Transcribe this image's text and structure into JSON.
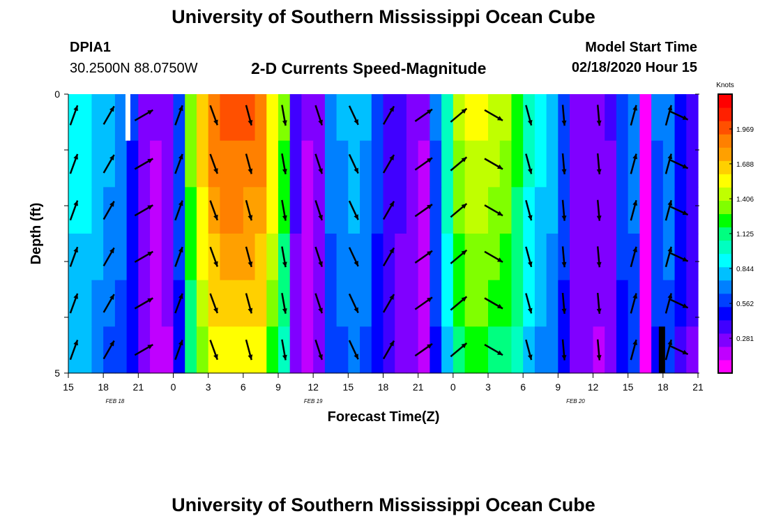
{
  "header": {
    "title": "University of Southern Mississippi Ocean Cube",
    "station": "DPIA1",
    "location": "30.2500N 88.0750W",
    "plot_title": "2-D Currents Speed-Magnitude",
    "model_label": "Model Start Time",
    "model_time": "02/18/2020 Hour 15"
  },
  "footer": {
    "title": "University of Southern Mississippi Ocean Cube"
  },
  "colors": {
    "scale": [
      "#ff00ff",
      "#c000ff",
      "#8000ff",
      "#4000ff",
      "#0000ff",
      "#0040ff",
      "#0080ff",
      "#00c0ff",
      "#00ffff",
      "#00ffc0",
      "#00ff80",
      "#00ff00",
      "#80ff00",
      "#c0ff00",
      "#ffff00",
      "#ffd000",
      "#ffa000",
      "#ff8000",
      "#ff5000",
      "#ff2000",
      "#ff0000"
    ],
    "stripe_white": "#ffffff",
    "stripe_black": "#000000"
  },
  "chart_data": {
    "type": "heatmap",
    "title": "2-D Currents Speed-Magnitude",
    "xlabel": "Forecast Time(Z)",
    "ylabel": "Depth (ft)",
    "ylim": [
      0,
      5
    ],
    "y_ticks": [
      "0",
      "5"
    ],
    "x_ticks": [
      "15",
      "18",
      "21",
      "0",
      "3",
      "6",
      "9",
      "12",
      "15",
      "18",
      "21",
      "0",
      "3",
      "6",
      "9",
      "12",
      "15",
      "18",
      "21"
    ],
    "date_labels": [
      {
        "label": "FEB 18",
        "hour_index": 4
      },
      {
        "label": "FEB 19",
        "hour_index": 21
      },
      {
        "label": "FEB 20",
        "hour_index": 43.5
      }
    ],
    "colorbar": {
      "unit": "Knots",
      "min": 0.0,
      "max": 2.25,
      "labels": [
        "1.969",
        "1.688",
        "1.406",
        "1.125",
        "0.844",
        "0.562",
        "0.281"
      ],
      "label_values": [
        1.969,
        1.688,
        1.406,
        1.125,
        0.844,
        0.562,
        0.281
      ]
    },
    "hours": 54,
    "depth_layers": [
      0,
      1,
      2,
      3,
      4,
      5
    ],
    "speed_profile": [
      0.95,
      0.95,
      0.85,
      0.78,
      0.72,
      0.55,
      0.3,
      0.22,
      0.25,
      0.6,
      1.35,
      1.7,
      1.88,
      1.95,
      1.97,
      1.93,
      1.88,
      1.6,
      1.3,
      0.35,
      0.22,
      0.3,
      0.7,
      0.75,
      0.82,
      0.75,
      0.58,
      0.42,
      0.35,
      0.3,
      0.22,
      0.65,
      1.05,
      1.42,
      1.5,
      1.5,
      1.45,
      1.4,
      1.25,
      1.0,
      0.9,
      0.82,
      0.6,
      0.32,
      0.28,
      0.25,
      0.33,
      0.6,
      0.7,
      0.05,
      0.65,
      0.72,
      0.5,
      0.4
    ],
    "depth_factor": [
      1.0,
      0.97,
      0.94,
      0.9,
      0.86,
      0.8
    ],
    "white_stripe": {
      "hour": 4.5,
      "layer": 0
    },
    "black_stripe": {
      "hour": 51,
      "layer": 5
    },
    "arrow_hours": [
      0,
      3,
      6,
      9,
      12,
      15,
      18,
      21,
      24,
      27,
      30,
      33,
      36,
      39,
      42,
      45,
      48,
      51,
      54
    ],
    "arrow_angles_deg": [
      -70,
      -60,
      -30,
      -70,
      70,
      75,
      80,
      72,
      65,
      -60,
      -35,
      -40,
      30,
      75,
      85,
      85,
      -75,
      -75,
      25
    ]
  }
}
